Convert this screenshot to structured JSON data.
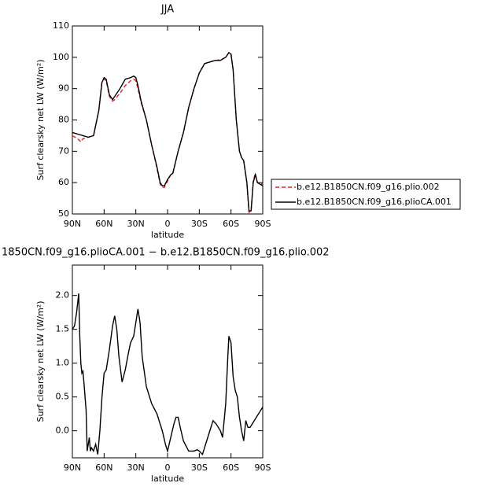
{
  "chart_data": [
    {
      "type": "line",
      "title": "JJA",
      "xlabel": "latitude",
      "ylabel": "Surf clearsky net LW (W/m²)",
      "x": [
        90,
        85,
        82,
        80,
        75,
        70,
        65,
        62,
        60,
        58,
        55,
        52,
        50,
        45,
        40,
        35,
        32,
        30,
        28,
        25,
        20,
        15,
        10,
        7,
        5,
        3,
        0,
        -3,
        -5,
        -10,
        -15,
        -20,
        -25,
        -30,
        -35,
        -40,
        -45,
        -50,
        -55,
        -58,
        -60,
        -62,
        -65,
        -68,
        -70,
        -72,
        -75,
        -77,
        -79,
        -81,
        -83,
        -85,
        -90
      ],
      "series": [
        {
          "name": "b.e12.B1850CN.f09_g16.plio.002",
          "color": "#e8202a",
          "linestyle": "dashed",
          "values": [
            75,
            74,
            73,
            74,
            74.5,
            75,
            83,
            92.5,
            93,
            92.5,
            87.5,
            86,
            86.5,
            88.5,
            91,
            92.5,
            93,
            92.5,
            90,
            85.5,
            80,
            72,
            64.5,
            59.5,
            58.5,
            58.5,
            60.5,
            62.5,
            63,
            70,
            76,
            84,
            90,
            95,
            98,
            98.5,
            99,
            99.2,
            100,
            101.5,
            101,
            96,
            80,
            70,
            68,
            67,
            60,
            50.5,
            51,
            60.5,
            63,
            60,
            59.5
          ]
        },
        {
          "name": "b.e12.B1850CN.f09_g16.plioCA.001",
          "color": "#000000",
          "linestyle": "solid",
          "values": [
            76,
            75.5,
            75.2,
            75,
            74.5,
            75,
            83,
            92,
            93.5,
            93,
            88,
            86.5,
            87.5,
            90,
            93,
            93.5,
            94,
            93.5,
            91,
            86,
            80,
            72,
            65,
            60,
            59,
            59,
            61,
            62.5,
            63,
            70,
            76,
            84,
            90,
            95,
            98,
            98.5,
            99,
            99,
            100,
            101.5,
            101,
            96,
            80,
            70,
            68,
            67,
            60,
            51,
            51,
            60,
            62.5,
            60,
            59
          ]
        }
      ],
      "xlim": [
        90,
        -90
      ],
      "xticks": [
        {
          "value": 90,
          "label": "90N"
        },
        {
          "value": 60,
          "label": "60N"
        },
        {
          "value": 30,
          "label": "30N"
        },
        0,
        {
          "value": -30,
          "label": "30S"
        },
        {
          "value": -60,
          "label": "60S"
        },
        {
          "value": -90,
          "label": "90S"
        }
      ],
      "ylim": [
        50,
        110
      ],
      "yticks": [
        50,
        60,
        70,
        80,
        90,
        100,
        110
      ],
      "legend": "right"
    },
    {
      "type": "line",
      "title": "1850CN.f09_g16.plioCA.001 − b.e12.B1850CN.f09_g16.plio.002",
      "xlabel": "latitude",
      "ylabel": "Surf clearsky net LW (W/m²)",
      "x": [
        90,
        88,
        86,
        84,
        83,
        82,
        81,
        80,
        79,
        77,
        76,
        74,
        73,
        72,
        70,
        68,
        66,
        64,
        62,
        60,
        58,
        55,
        52,
        50,
        48,
        46,
        43,
        40,
        37,
        35,
        32,
        30,
        28,
        26,
        24,
        20,
        15,
        10,
        5,
        2,
        0,
        -3,
        -6,
        -8,
        -10,
        -12,
        -15,
        -20,
        -25,
        -28,
        -30,
        -33,
        -36,
        -40,
        -43,
        -46,
        -50,
        -52,
        -55,
        -57,
        -58,
        -60,
        -62,
        -64,
        -66,
        -68,
        -70,
        -72,
        -74,
        -76,
        -78,
        -80,
        -84,
        -90
      ],
      "series": [
        {
          "color": "#000000",
          "linestyle": "solid",
          "values": [
            1.5,
            1.55,
            1.75,
            2.03,
            1.4,
            1.0,
            0.85,
            0.88,
            0.7,
            0.3,
            -0.3,
            -0.1,
            -0.3,
            -0.25,
            -0.3,
            -0.2,
            -0.35,
            0.0,
            0.5,
            0.85,
            0.9,
            1.2,
            1.55,
            1.7,
            1.5,
            1.1,
            0.72,
            0.9,
            1.15,
            1.3,
            1.4,
            1.6,
            1.8,
            1.6,
            1.1,
            0.65,
            0.4,
            0.25,
            0.0,
            -0.2,
            -0.3,
            -0.1,
            0.1,
            0.2,
            0.2,
            0.05,
            -0.15,
            -0.3,
            -0.3,
            -0.28,
            -0.3,
            -0.35,
            -0.2,
            0.0,
            0.15,
            0.1,
            0.0,
            -0.1,
            0.4,
            1.1,
            1.4,
            1.3,
            0.8,
            0.6,
            0.5,
            0.2,
            0.0,
            -0.15,
            0.15,
            0.05,
            0.05,
            0.1,
            0.2,
            0.35
          ]
        }
      ],
      "xlim": [
        90,
        -90
      ],
      "xticks": [
        {
          "value": 90,
          "label": "90N"
        },
        {
          "value": 60,
          "label": "60N"
        },
        {
          "value": 30,
          "label": "30N"
        },
        0,
        {
          "value": -30,
          "label": "30S"
        },
        {
          "value": -60,
          "label": "60S"
        },
        {
          "value": -90,
          "label": "90S"
        }
      ],
      "ylim": [
        -0.4,
        2.45
      ],
      "yticks": [
        {
          "value": 0,
          "label": "0.0"
        },
        0.5,
        {
          "value": 1,
          "label": "1.0"
        },
        1.5,
        {
          "value": 2,
          "label": "2.0"
        }
      ]
    }
  ]
}
